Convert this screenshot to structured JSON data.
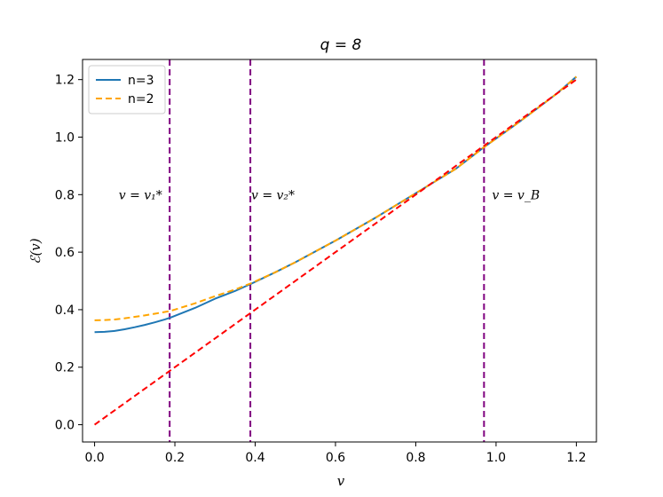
{
  "chart_data": {
    "type": "line",
    "title": "q = 8",
    "xlabel": "v",
    "ylabel": "ℰ(v)",
    "xlim": [
      -0.03,
      1.25
    ],
    "ylim": [
      -0.06,
      1.27
    ],
    "xticks": [
      0.0,
      0.2,
      0.4,
      0.6,
      0.8,
      1.0,
      1.2
    ],
    "xtick_labels": [
      "0.0",
      "0.2",
      "0.4",
      "0.6",
      "0.8",
      "1.0",
      "1.2"
    ],
    "yticks": [
      0.0,
      0.2,
      0.4,
      0.6,
      0.8,
      1.0,
      1.2
    ],
    "ytick_labels": [
      "0.0",
      "0.2",
      "0.4",
      "0.6",
      "0.8",
      "1.0",
      "1.2"
    ],
    "grid": false,
    "legend_position": "upper-left",
    "series": [
      {
        "name": "n=3",
        "color": "#1f77b4",
        "dash": "solid",
        "x": [
          0.0,
          0.025,
          0.05,
          0.075,
          0.1,
          0.125,
          0.15,
          0.175,
          0.19,
          0.25,
          0.3,
          0.35,
          0.39,
          0.45,
          0.5,
          0.6,
          0.7,
          0.8,
          0.9,
          0.97,
          1.05,
          1.1,
          1.15,
          1.2
        ],
        "y": [
          0.322,
          0.323,
          0.326,
          0.332,
          0.339,
          0.347,
          0.356,
          0.366,
          0.373,
          0.406,
          0.438,
          0.465,
          0.49,
          0.53,
          0.565,
          0.64,
          0.72,
          0.805,
          0.89,
          0.965,
          1.045,
          1.097,
          1.15,
          1.21
        ]
      },
      {
        "name": "n=2",
        "color": "#ffa500",
        "dash": "dashed",
        "x": [
          0.0,
          0.025,
          0.05,
          0.075,
          0.1,
          0.125,
          0.15,
          0.175,
          0.19,
          0.25,
          0.3,
          0.35,
          0.39,
          0.45,
          0.5,
          0.6,
          0.7,
          0.8,
          0.9,
          0.97,
          1.05,
          1.1,
          1.15,
          1.2
        ],
        "y": [
          0.363,
          0.364,
          0.366,
          0.37,
          0.375,
          0.38,
          0.386,
          0.392,
          0.396,
          0.422,
          0.447,
          0.47,
          0.492,
          0.53,
          0.565,
          0.64,
          0.72,
          0.805,
          0.89,
          0.965,
          1.045,
          1.097,
          1.15,
          1.21
        ]
      },
      {
        "color": "#ff0000",
        "dash": "dashed",
        "x": [
          0.0,
          1.2
        ],
        "y": [
          0.0,
          1.2
        ]
      }
    ],
    "vlines": [
      {
        "x": 0.187,
        "color": "#800080",
        "dash": "dashed"
      },
      {
        "x": 0.388,
        "color": "#800080",
        "dash": "dashed"
      },
      {
        "x": 0.97,
        "color": "#800080",
        "dash": "dashed"
      }
    ],
    "annotations": [
      {
        "text": "v = v₁*",
        "x": 0.06,
        "y": 0.8
      },
      {
        "text": "v = v₂*",
        "x": 0.39,
        "y": 0.8
      },
      {
        "text": "v = v_B",
        "x": 0.99,
        "y": 0.8
      }
    ]
  }
}
